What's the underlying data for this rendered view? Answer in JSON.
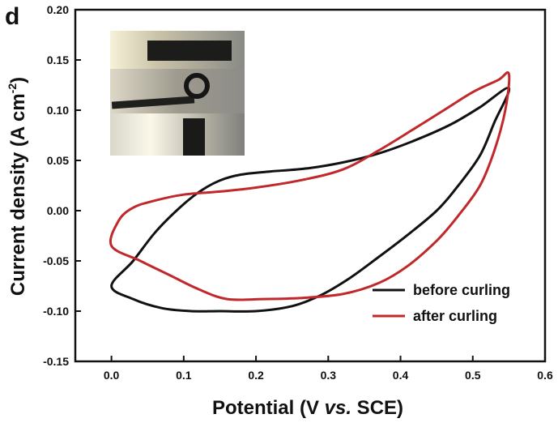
{
  "chart_data": {
    "type": "line",
    "panel_label": "d",
    "title": "",
    "xlabel": "Potential (V vs. SCE)",
    "xlabel_parts": {
      "before": "Potential (V ",
      "italic": "vs.",
      "after": " SCE)"
    },
    "ylabel": "Current density (A cm-2)",
    "ylabel_parts": {
      "base": "Current density (A cm",
      "sup": "-2",
      "close": ")"
    },
    "xlim": [
      -0.05,
      0.6
    ],
    "ylim": [
      -0.15,
      0.2
    ],
    "xticks": [
      "0.0",
      "0.1",
      "0.2",
      "0.3",
      "0.4",
      "0.5",
      "0.6"
    ],
    "xtick_values": [
      0.0,
      0.1,
      0.2,
      0.3,
      0.4,
      0.5,
      0.6
    ],
    "yticks": [
      "-0.15",
      "-0.10",
      "-0.05",
      "0.00",
      "0.05",
      "0.10",
      "0.15",
      "0.20"
    ],
    "ytick_values": [
      -0.15,
      -0.1,
      -0.05,
      0.0,
      0.05,
      0.1,
      0.15,
      0.2
    ],
    "grid": false,
    "legend_position": "lower-right",
    "inset": "photo-of-electrode-before-and-after-curling",
    "series": [
      {
        "name": "before curling",
        "color": "#111111",
        "points": [
          [
            0.0,
            -0.075
          ],
          [
            0.03,
            -0.05
          ],
          [
            0.06,
            -0.022
          ],
          [
            0.09,
            0.0
          ],
          [
            0.12,
            0.018
          ],
          [
            0.15,
            0.03
          ],
          [
            0.18,
            0.036
          ],
          [
            0.22,
            0.039
          ],
          [
            0.27,
            0.042
          ],
          [
            0.32,
            0.048
          ],
          [
            0.37,
            0.057
          ],
          [
            0.42,
            0.07
          ],
          [
            0.47,
            0.086
          ],
          [
            0.51,
            0.103
          ],
          [
            0.55,
            0.122
          ],
          [
            0.53,
            0.088
          ],
          [
            0.51,
            0.055
          ],
          [
            0.48,
            0.025
          ],
          [
            0.45,
            0.0
          ],
          [
            0.41,
            -0.024
          ],
          [
            0.37,
            -0.046
          ],
          [
            0.33,
            -0.067
          ],
          [
            0.29,
            -0.084
          ],
          [
            0.25,
            -0.095
          ],
          [
            0.2,
            -0.1
          ],
          [
            0.15,
            -0.1
          ],
          [
            0.11,
            -0.1
          ],
          [
            0.07,
            -0.097
          ],
          [
            0.03,
            -0.088
          ],
          [
            0.0,
            -0.075
          ]
        ]
      },
      {
        "name": "after curling",
        "color": "#c0282b",
        "points": [
          [
            0.0,
            -0.035
          ],
          [
            0.01,
            -0.01
          ],
          [
            0.03,
            0.003
          ],
          [
            0.06,
            0.01
          ],
          [
            0.1,
            0.016
          ],
          [
            0.15,
            0.019
          ],
          [
            0.2,
            0.023
          ],
          [
            0.26,
            0.03
          ],
          [
            0.32,
            0.041
          ],
          [
            0.37,
            0.06
          ],
          [
            0.42,
            0.082
          ],
          [
            0.46,
            0.1
          ],
          [
            0.5,
            0.118
          ],
          [
            0.535,
            0.13
          ],
          [
            0.55,
            0.136
          ],
          [
            0.545,
            0.1
          ],
          [
            0.53,
            0.06
          ],
          [
            0.51,
            0.025
          ],
          [
            0.48,
            -0.005
          ],
          [
            0.45,
            -0.03
          ],
          [
            0.41,
            -0.055
          ],
          [
            0.37,
            -0.072
          ],
          [
            0.32,
            -0.083
          ],
          [
            0.26,
            -0.087
          ],
          [
            0.21,
            -0.088
          ],
          [
            0.16,
            -0.088
          ],
          [
            0.12,
            -0.078
          ],
          [
            0.08,
            -0.064
          ],
          [
            0.04,
            -0.05
          ],
          [
            0.0,
            -0.035
          ]
        ]
      }
    ]
  }
}
